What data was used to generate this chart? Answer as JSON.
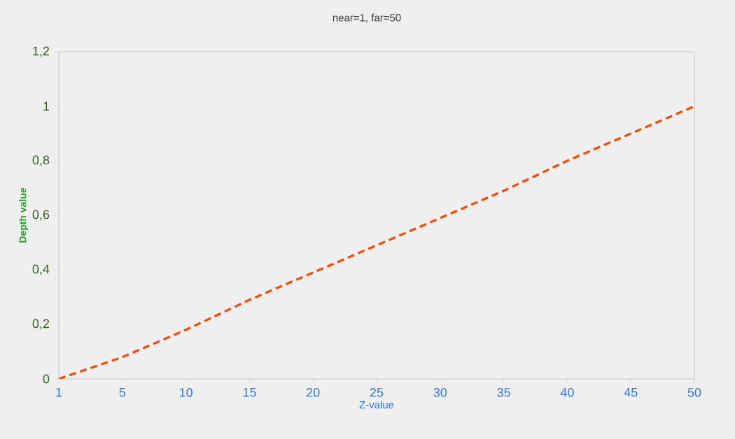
{
  "chart_data": {
    "type": "line",
    "title": "near=1, far=50",
    "xlabel": "Z-value",
    "ylabel": "Depth value",
    "categories": [
      "1",
      "5",
      "10",
      "15",
      "20",
      "25",
      "30",
      "35",
      "40",
      "45",
      "50"
    ],
    "values": [
      0,
      0.08,
      0.18,
      0.29,
      0.39,
      0.49,
      0.59,
      0.69,
      0.8,
      0.9,
      1
    ],
    "color": "#ff4500",
    "line_style": "dashed",
    "marker": "none",
    "grid": false,
    "ylim": [
      0,
      1.2
    ],
    "yticks": [
      0,
      {
        "value": 0.2,
        "label": "0,2"
      },
      {
        "value": 0.4,
        "label": "0,4"
      },
      {
        "value": 0.6,
        "label": "0,6"
      },
      {
        "value": 0.8,
        "label": "0,8"
      },
      1,
      {
        "value": 1.2,
        "label": "1,2"
      }
    ]
  }
}
